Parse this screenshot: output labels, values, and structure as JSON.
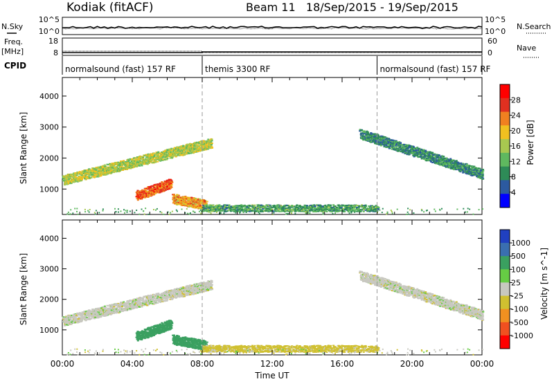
{
  "header": {
    "radar": "Kodiak (fitACF)",
    "beam_info": "Beam 11   18/Sep/2015 - 19/Sep/2015"
  },
  "labels": {
    "nsky": "N.Sky",
    "nsearch": "N.Search",
    "freq": "Freq.",
    "freq_unit": "[MHz]",
    "nave": "Nave",
    "cpid": "CPID"
  },
  "noise_panel": {
    "left_ticks": [
      "10^5",
      "10^0"
    ],
    "right_ticks": [
      "10^5",
      "10^0"
    ]
  },
  "freq_panel": {
    "left_ticks": [
      "18",
      "8"
    ],
    "right_ticks": [
      "60",
      "0"
    ]
  },
  "cpid_segments": [
    {
      "label": "normalsound (fast) 157 RF",
      "start": 0,
      "end": 8
    },
    {
      "label": "themis 3300 RF",
      "start": 8,
      "end": 18
    },
    {
      "label": "normalsound (fast) 157 RF",
      "start": 18,
      "end": 24
    }
  ],
  "time_axis": {
    "label": "Time UT",
    "ticks": [
      "00:00",
      "04:00",
      "08:00",
      "12:00",
      "16:00",
      "20:00",
      "00:00"
    ],
    "start_hour": 0,
    "end_hour": 24,
    "dashed_marks": [
      8,
      18
    ]
  },
  "power_panel": {
    "ylabel": "Slant Range [km]",
    "yticks": [
      "1000",
      "2000",
      "3000",
      "4000"
    ],
    "ylim": [
      180,
      4600
    ],
    "colorbar_label": "Power [dB]",
    "colorbar_ticks": [
      "4",
      "8",
      "12",
      "16",
      "20",
      "24",
      "28"
    ],
    "colors": [
      "#0000ff",
      "#2c5aa0",
      "#2e8b57",
      "#5fb85f",
      "#a8c850",
      "#f0c020",
      "#f08020",
      "#e03020",
      "#ff0000"
    ]
  },
  "velocity_panel": {
    "ylabel": "Slant Range [km]",
    "yticks": [
      "1000",
      "2000",
      "3000",
      "4000"
    ],
    "ylim": [
      180,
      4600
    ],
    "colorbar_label": "Velocity [m s^-1]",
    "colorbar_ticks": [
      "1000",
      "500",
      "100",
      "25",
      "-25",
      "-100",
      "-500",
      "-1000"
    ],
    "colors": [
      "#2040c0",
      "#3a6fb0",
      "#3aa060",
      "#66cc44",
      "#c8c8c0",
      "#d0c030",
      "#f09020",
      "#f05020",
      "#ff0000"
    ]
  },
  "chart_data": {
    "type": "heatmap",
    "x": "time (hours UT)",
    "y": "slant range (km)",
    "echo_regions": [
      {
        "name": "band-1",
        "t": [
          0,
          8.5
        ],
        "range_start": 1300,
        "range_end": 2500,
        "power_db": 16,
        "velocity": 0
      },
      {
        "name": "band-2",
        "t": [
          4.2,
          6.2
        ],
        "range_start": 800,
        "range_end": 1200,
        "power_db": 26,
        "velocity": 150
      },
      {
        "name": "band-3",
        "t": [
          6.3,
          8.2
        ],
        "range_start": 700,
        "range_end": 500,
        "power_db": 22,
        "velocity": 150
      },
      {
        "name": "band-4",
        "t": [
          17,
          24
        ],
        "range_start": 2800,
        "range_end": 1500,
        "power_db": 8,
        "velocity": 0
      },
      {
        "name": "ground-scatter",
        "t": [
          8,
          18
        ],
        "range_start": 400,
        "range_end": 400,
        "power_db": 10,
        "velocity": -50
      }
    ]
  }
}
